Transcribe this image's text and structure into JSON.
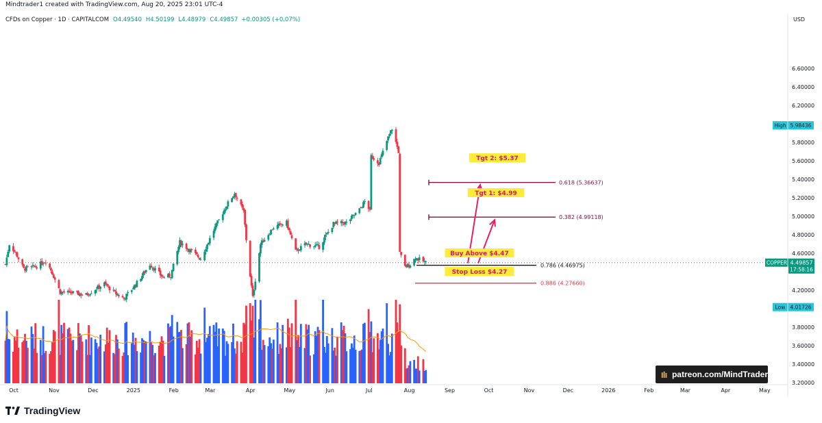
{
  "header": {
    "created_by": "Mindtrader1 created with TradingView.com, Aug 20, 2025 23:01 UTC-4",
    "symbol_line": "CFDs on Copper · 1D · CAPITALCOM",
    "ohlc": {
      "o": "O4.49540",
      "h": "H4.50199",
      "l": "L4.48979",
      "c": "C4.49857",
      "chg": "+0.00305 (+0.07%)"
    }
  },
  "colors": {
    "up": "#089981",
    "down": "#f23645",
    "vol_up": "#2962ff",
    "vol_down": "#f23645",
    "fib": "#880e4f",
    "stop": "#f23645",
    "arrow": "#e91e63",
    "label_bg": "#ffeb3b",
    "label_text": "#d81b60",
    "high_low_tag": "#26c6da",
    "price_tag": "#089981",
    "ma": "#ff9800"
  },
  "chart_data": {
    "type": "candlestick",
    "y_axis": {
      "unit": "USD",
      "ticks": [
        "6.60000",
        "6.40000",
        "6.20000",
        "5.80000",
        "5.60000",
        "5.40000",
        "5.20000",
        "5.00000",
        "4.80000",
        "4.60000",
        "4.20000",
        "3.80000",
        "3.60000",
        "3.40000",
        "3.20000"
      ],
      "range": [
        3.1,
        6.95
      ]
    },
    "x_axis": {
      "ticks": [
        "Oct",
        "Nov",
        "Dec",
        "2025",
        "Feb",
        "Mar",
        "Apr",
        "May",
        "Jun",
        "Jul",
        "Aug",
        "Sep",
        "Oct",
        "Nov",
        "Dec",
        "2026",
        "Feb",
        "Mar",
        "Apr",
        "May"
      ]
    },
    "price_path": [
      [
        "Oct 1",
        4.48
      ],
      [
        "Oct 4",
        4.7
      ],
      [
        "Oct 9",
        4.6
      ],
      [
        "Oct 15",
        4.43
      ],
      [
        "Oct 25",
        4.46
      ],
      [
        "Nov 1",
        4.52
      ],
      [
        "Nov 5",
        4.42
      ],
      [
        "Nov 12",
        4.18
      ],
      [
        "Nov 22",
        4.17
      ],
      [
        "Dec 2",
        4.15
      ],
      [
        "Dec 10",
        4.22
      ],
      [
        "Dec 16",
        4.27
      ],
      [
        "Dec 24",
        4.17
      ],
      [
        "Dec 31",
        4.11
      ],
      [
        "Jan 10",
        4.28
      ],
      [
        "Jan 20",
        4.48
      ],
      [
        "Jan 30",
        4.34
      ],
      [
        "Feb 5",
        4.36
      ],
      [
        "Feb 12",
        4.72
      ],
      [
        "Feb 20",
        4.63
      ],
      [
        "Feb 28",
        4.54
      ],
      [
        "Mar 10",
        4.85
      ],
      [
        "Mar 20",
        5.12
      ],
      [
        "Mar 26",
        5.25
      ],
      [
        "Apr 2",
        5.05
      ],
      [
        "Apr 5",
        4.6
      ],
      [
        "Apr 9",
        4.12
      ],
      [
        "Apr 15",
        4.7
      ],
      [
        "Apr 25",
        4.88
      ],
      [
        "May 5",
        4.93
      ],
      [
        "May 12",
        4.62
      ],
      [
        "May 20",
        4.7
      ],
      [
        "May 30",
        4.67
      ],
      [
        "Jun 10",
        4.92
      ],
      [
        "Jun 20",
        4.93
      ],
      [
        "Jun 30",
        5.07
      ],
      [
        "Jul 5",
        5.18
      ],
      [
        "Jul 8",
        5.05
      ],
      [
        "Jul 9",
        5.65
      ],
      [
        "Jul 15",
        5.58
      ],
      [
        "Jul 22",
        5.85
      ],
      [
        "Jul 25",
        5.95
      ],
      [
        "Jul 30",
        5.7
      ],
      [
        "Jul 31",
        4.6
      ],
      [
        "Aug 4",
        4.45
      ],
      [
        "Aug 8",
        4.48
      ],
      [
        "Aug 12",
        4.55
      ],
      [
        "Aug 20",
        4.4986
      ]
    ],
    "volume_note": "daily volume histogram with moving average (orange)",
    "annotations": {
      "fib_levels": [
        {
          "label": "0.618 (5.36637)",
          "price": 5.36637
        },
        {
          "label": "0.382 (4.99118)",
          "price": 4.99118
        },
        {
          "label": "0.786 (4.46975)",
          "price": 4.46975
        },
        {
          "label": "0.886 (4.27660)",
          "price": 4.2766
        }
      ],
      "callouts": [
        {
          "text": "Tgt 2: $5.37",
          "price": 5.37
        },
        {
          "text": "Tgt 1: $4.99",
          "price": 4.99
        },
        {
          "text": "Buy Above $4.47",
          "price": 4.47
        },
        {
          "text": "Stop Loss $4.27",
          "price": 4.27
        }
      ]
    },
    "tags": {
      "high": {
        "label": "High",
        "value": "5.98436"
      },
      "low": {
        "label": "Low",
        "value": "4.01726"
      },
      "last": {
        "symbol": "COPPER",
        "value": "4.49857",
        "countdown": "17:58:16"
      }
    }
  },
  "watermark": {
    "text": "patreon.com/MindTrader"
  },
  "brand": {
    "name": "TradingView"
  }
}
